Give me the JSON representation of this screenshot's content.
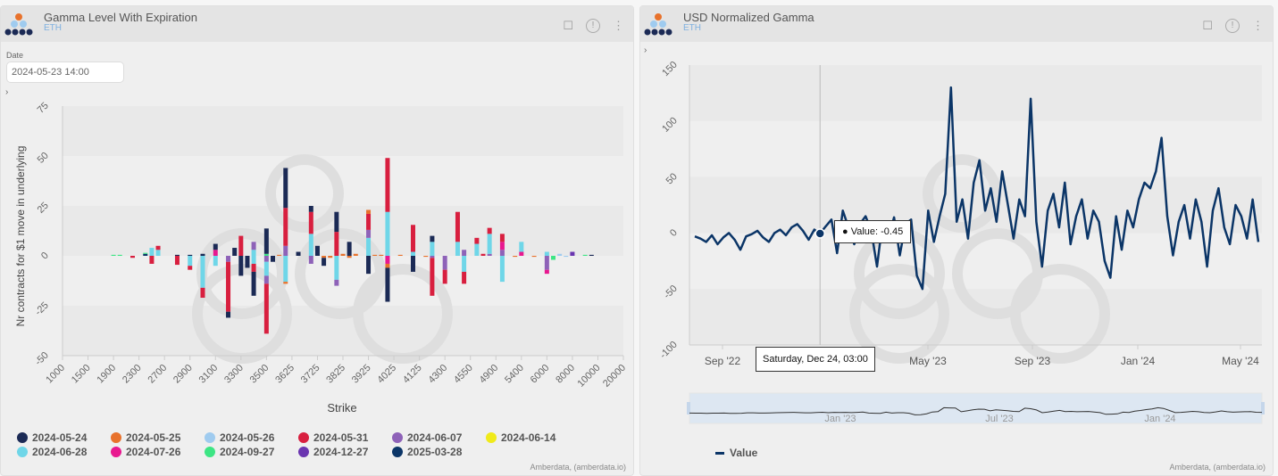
{
  "left": {
    "title": "Gamma Level With Expiration",
    "subtitle": "ETH",
    "date_label": "Date",
    "date_value": "2024-05-23 14:00",
    "expand": "›",
    "credit": "Amberdata, (amberdata.io)"
  },
  "right": {
    "title": "USD Normalized Gamma",
    "subtitle": "ETH",
    "expand": "›",
    "credit": "Amberdata, (amberdata.io)",
    "tooltip_value": "Value: -0.45",
    "tooltip_date": "Saturday, Dec 24, 03:00",
    "legend_label": "Value"
  },
  "icons": {
    "bookmark": "bookmark-icon",
    "info": "info-icon",
    "menu": "more-vert-icon"
  },
  "info_glyph": "!",
  "menu_glyph": "⋮",
  "chart_data": [
    {
      "type": "bar",
      "stacked": true,
      "title": "Gamma Level With Expiration",
      "xlabel": "Strike",
      "ylabel": "Nr contracts for $1 move in underlying",
      "ylim": [
        -50,
        75
      ],
      "yticks": [
        75,
        50,
        25,
        0,
        -25,
        -50
      ],
      "xticks": [
        "1000",
        "1500",
        "1900",
        "2300",
        "2700",
        "2900",
        "3100",
        "3300",
        "3500",
        "3625",
        "3725",
        "3825",
        "3925",
        "4025",
        "4125",
        "4300",
        "4550",
        "4900",
        "5400",
        "6000",
        "8000",
        "10000",
        "20000"
      ],
      "category_count": 88,
      "series": [
        {
          "name": "2024-05-24",
          "color": "#1b2a55"
        },
        {
          "name": "2024-05-25",
          "color": "#e8722c"
        },
        {
          "name": "2024-05-26",
          "color": "#9fcbef"
        },
        {
          "name": "2024-05-31",
          "color": "#d81f3f"
        },
        {
          "name": "2024-06-07",
          "color": "#8e62b8"
        },
        {
          "name": "2024-06-14",
          "color": "#f0ea1a"
        },
        {
          "name": "2024-06-28",
          "color": "#6fd6e8"
        },
        {
          "name": "2024-07-26",
          "color": "#e8188f"
        },
        {
          "name": "2024-09-27",
          "color": "#3de584"
        },
        {
          "name": "2024-12-27",
          "color": "#6a35b0"
        },
        {
          "name": "2025-03-28",
          "color": "#0b3567"
        }
      ],
      "bars": [
        {
          "i": 8,
          "seg": [
            [
              8,
              0.5
            ]
          ]
        },
        {
          "i": 9,
          "seg": [
            [
              8,
              0.5
            ]
          ]
        },
        {
          "i": 11,
          "seg": [
            [
              3,
              -1
            ]
          ]
        },
        {
          "i": 13,
          "seg": [
            [
              10,
              1
            ],
            [
              8,
              0.5
            ]
          ]
        },
        {
          "i": 14,
          "seg": [
            [
              6,
              4
            ],
            [
              3,
              -4
            ]
          ]
        },
        {
          "i": 15,
          "seg": [
            [
              6,
              3
            ],
            [
              3,
              2
            ]
          ]
        },
        {
          "i": 18,
          "seg": [
            [
              3,
              -4.5
            ],
            [
              0,
              0.5
            ]
          ]
        },
        {
          "i": 20,
          "seg": [
            [
              0,
              0.5
            ],
            [
              6,
              -5
            ],
            [
              3,
              -2
            ]
          ]
        },
        {
          "i": 22,
          "seg": [
            [
              0,
              1
            ],
            [
              6,
              -16
            ],
            [
              3,
              -5
            ]
          ]
        },
        {
          "i": 24,
          "seg": [
            [
              7,
              3
            ],
            [
              0,
              3
            ],
            [
              6,
              -5
            ]
          ]
        },
        {
          "i": 26,
          "seg": [
            [
              4,
              -3
            ],
            [
              3,
              -25
            ],
            [
              0,
              -3
            ]
          ]
        },
        {
          "i": 27,
          "seg": [
            [
              0,
              4
            ]
          ]
        },
        {
          "i": 28,
          "seg": [
            [
              3,
              10
            ],
            [
              0,
              -10
            ]
          ]
        },
        {
          "i": 29,
          "seg": [
            [
              0,
              -6
            ]
          ]
        },
        {
          "i": 30,
          "seg": [
            [
              6,
              3
            ],
            [
              4,
              4
            ],
            [
              6,
              -4
            ],
            [
              3,
              -4
            ],
            [
              0,
              -12
            ]
          ]
        },
        {
          "i": 32,
          "seg": [
            [
              8,
              1
            ],
            [
              0,
              12.7
            ],
            [
              4,
              -3
            ],
            [
              6,
              -7
            ],
            [
              4,
              -4
            ],
            [
              3,
              -25
            ]
          ]
        },
        {
          "i": 33,
          "seg": [
            [
              0,
              -3
            ]
          ]
        },
        {
          "i": 34,
          "seg": [
            [
              1,
              0.5
            ]
          ]
        },
        {
          "i": 35,
          "seg": [
            [
              4,
              5
            ],
            [
              3,
              19
            ],
            [
              0,
              20
            ],
            [
              6,
              -13
            ],
            [
              1,
              -1
            ]
          ]
        },
        {
          "i": 37,
          "seg": [
            [
              0,
              2
            ]
          ]
        },
        {
          "i": 39,
          "seg": [
            [
              6,
              11
            ],
            [
              3,
              11
            ],
            [
              0,
              3
            ],
            [
              4,
              -4
            ]
          ]
        },
        {
          "i": 40,
          "seg": [
            [
              0,
              5
            ]
          ]
        },
        {
          "i": 41,
          "seg": [
            [
              1,
              -1
            ],
            [
              0,
              -4
            ]
          ]
        },
        {
          "i": 42,
          "seg": [
            [
              1,
              -1
            ]
          ]
        },
        {
          "i": 43,
          "seg": [
            [
              3,
              12
            ],
            [
              0,
              10
            ],
            [
              6,
              -12
            ],
            [
              4,
              -3
            ]
          ]
        },
        {
          "i": 44,
          "seg": [
            [
              1,
              1
            ]
          ]
        },
        {
          "i": 45,
          "seg": [
            [
              0,
              7
            ],
            [
              1,
              -1
            ]
          ]
        },
        {
          "i": 46,
          "seg": [
            [
              1,
              1
            ]
          ]
        },
        {
          "i": 48,
          "seg": [
            [
              6,
              9
            ],
            [
              4,
              4
            ],
            [
              3,
              8
            ],
            [
              1,
              2
            ],
            [
              0,
              -9
            ]
          ]
        },
        {
          "i": 49,
          "seg": [
            [
              1,
              0.5
            ]
          ]
        },
        {
          "i": 50,
          "seg": [
            [
              1,
              0.5
            ]
          ]
        },
        {
          "i": 51,
          "seg": [
            [
              6,
              22
            ],
            [
              3,
              27
            ],
            [
              7,
              -4
            ],
            [
              1,
              -2
            ],
            [
              0,
              -17
            ]
          ]
        },
        {
          "i": 53,
          "seg": [
            [
              1,
              0.5
            ]
          ]
        },
        {
          "i": 55,
          "seg": [
            [
              6,
              2
            ],
            [
              3,
              13.5
            ],
            [
              0,
              -8
            ]
          ]
        },
        {
          "i": 57,
          "seg": [
            [
              1,
              -0.5
            ]
          ]
        },
        {
          "i": 58,
          "seg": [
            [
              6,
              7
            ],
            [
              0,
              3
            ],
            [
              4,
              -1
            ],
            [
              3,
              -19
            ]
          ]
        },
        {
          "i": 60,
          "seg": [
            [
              4,
              -7
            ],
            [
              3,
              -7
            ]
          ]
        },
        {
          "i": 62,
          "seg": [
            [
              6,
              7
            ],
            [
              3,
              15
            ]
          ]
        },
        {
          "i": 63,
          "seg": [
            [
              4,
              3
            ],
            [
              6,
              -8
            ],
            [
              3,
              -6
            ]
          ]
        },
        {
          "i": 65,
          "seg": [
            [
              6,
              6
            ],
            [
              3,
              3
            ]
          ]
        },
        {
          "i": 66,
          "seg": [
            [
              3,
              1
            ]
          ]
        },
        {
          "i": 67,
          "seg": [
            [
              4,
              1
            ],
            [
              6,
              10
            ],
            [
              3,
              3
            ]
          ]
        },
        {
          "i": 69,
          "seg": [
            [
              4,
              3
            ],
            [
              7,
              4
            ],
            [
              3,
              4
            ],
            [
              6,
              -13
            ]
          ]
        },
        {
          "i": 71,
          "seg": [
            [
              1,
              -0.5
            ]
          ]
        },
        {
          "i": 72,
          "seg": [
            [
              7,
              2
            ],
            [
              6,
              5
            ]
          ]
        },
        {
          "i": 74,
          "seg": [
            [
              1,
              -0.5
            ]
          ]
        },
        {
          "i": 76,
          "seg": [
            [
              6,
              2
            ],
            [
              4,
              -7
            ],
            [
              7,
              -2
            ]
          ]
        },
        {
          "i": 77,
          "seg": [
            [
              8,
              -2
            ]
          ]
        },
        {
          "i": 78,
          "seg": [
            [
              2,
              1
            ]
          ]
        },
        {
          "i": 79,
          "seg": [
            [
              2,
              -0.5
            ]
          ]
        },
        {
          "i": 80,
          "seg": [
            [
              9,
              2
            ]
          ]
        },
        {
          "i": 82,
          "seg": [
            [
              8,
              0.5
            ]
          ]
        },
        {
          "i": 83,
          "seg": [
            [
              0,
              0.5
            ]
          ]
        }
      ]
    },
    {
      "type": "line",
      "title": "USD Normalized Gamma",
      "ylim": [
        -100,
        150
      ],
      "yticks": [
        150,
        100,
        50,
        0,
        -50,
        -100
      ],
      "xticks": [
        "Sep '22",
        "May '23",
        "Sep '23",
        "Jan '24",
        "May '24"
      ],
      "navigator_ticks": [
        "Jan '23",
        "Jul '23",
        "Jan '24"
      ],
      "series_name": "Value",
      "color": "#0b3567",
      "highlight_index": 22,
      "values": [
        -3,
        -5,
        -8,
        -2,
        -10,
        -4,
        0,
        -6,
        -15,
        -3,
        -1,
        2,
        -4,
        -8,
        0,
        3,
        -2,
        5,
        8,
        2,
        -6,
        3,
        -0.45,
        6,
        12,
        -18,
        20,
        5,
        -10,
        8,
        15,
        2,
        -30,
        10,
        -5,
        14,
        -20,
        8,
        12,
        -38,
        -50,
        20,
        -8,
        15,
        35,
        130,
        10,
        30,
        -5,
        45,
        65,
        20,
        40,
        10,
        55,
        25,
        -5,
        30,
        15,
        120,
        10,
        -30,
        20,
        35,
        5,
        45,
        -10,
        15,
        30,
        -5,
        20,
        10,
        -25,
        -40,
        15,
        -15,
        20,
        5,
        30,
        45,
        40,
        55,
        85,
        15,
        -20,
        10,
        25,
        -5,
        30,
        10,
        -30,
        20,
        40,
        5,
        -10,
        25,
        15,
        -5,
        30,
        -8
      ]
    }
  ]
}
